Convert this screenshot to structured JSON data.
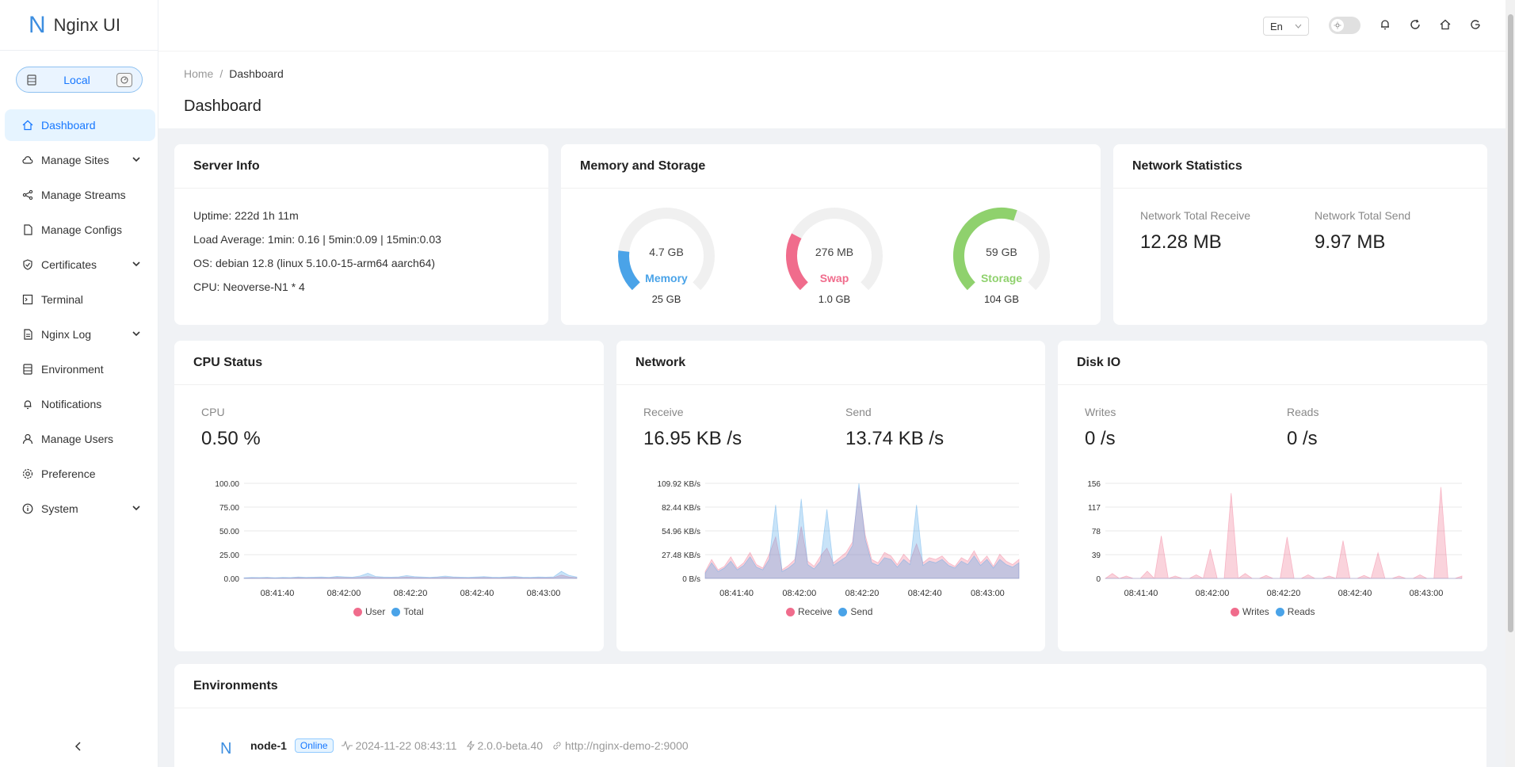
{
  "app": {
    "logo_letter": "N",
    "title": "Nginx UI"
  },
  "node_selector": {
    "label": "Local"
  },
  "sidebar": {
    "items": [
      {
        "label": "Dashboard",
        "icon": "home-icon",
        "active": true,
        "expandable": false
      },
      {
        "label": "Manage Sites",
        "icon": "cloud-icon",
        "expandable": true
      },
      {
        "label": "Manage Streams",
        "icon": "share-icon",
        "expandable": false
      },
      {
        "label": "Manage Configs",
        "icon": "file-icon",
        "expandable": false
      },
      {
        "label": "Certificates",
        "icon": "safety-certificate-icon",
        "expandable": true
      },
      {
        "label": "Terminal",
        "icon": "terminal-icon",
        "expandable": false
      },
      {
        "label": "Nginx Log",
        "icon": "file-text-icon",
        "expandable": true
      },
      {
        "label": "Environment",
        "icon": "database-icon",
        "expandable": false
      },
      {
        "label": "Notifications",
        "icon": "bell-icon",
        "expandable": false
      },
      {
        "label": "Manage Users",
        "icon": "user-icon",
        "expandable": false
      },
      {
        "label": "Preference",
        "icon": "setting-icon",
        "expandable": false
      },
      {
        "label": "System",
        "icon": "info-circle-icon",
        "expandable": true
      }
    ]
  },
  "header": {
    "language": "En"
  },
  "breadcrumb": {
    "home": "Home",
    "current": "Dashboard"
  },
  "page_title": "Dashboard",
  "server_info": {
    "title": "Server Info",
    "uptime": "Uptime: 222d 1h 11m",
    "load": "Load Average: 1min: 0.16 | 5min:0.09 | 15min:0.03",
    "os": "OS: debian 12.8 (linux 5.10.0-15-arm64 aarch64)",
    "cpu": "CPU: Neoverse-N1 * 4"
  },
  "memory_storage": {
    "title": "Memory and Storage",
    "gauges": [
      {
        "value": "4.7 GB",
        "name": "Memory",
        "total": "25 GB",
        "fraction": 0.19,
        "color": "#4aa3e8"
      },
      {
        "value": "276 MB",
        "name": "Swap",
        "total": "1.0 GB",
        "fraction": 0.27,
        "color": "#f06c8c"
      },
      {
        "value": "59 GB",
        "name": "Storage",
        "total": "104 GB",
        "fraction": 0.57,
        "color": "#8fd16d"
      }
    ]
  },
  "network_statistics": {
    "title": "Network Statistics",
    "receive_label": "Network Total Receive",
    "receive_value": "12.28 MB",
    "send_label": "Network Total Send",
    "send_value": "9.97 MB"
  },
  "cpu_status": {
    "title": "CPU Status",
    "label": "CPU",
    "value": "0.50 %",
    "legend": [
      "User",
      "Total"
    ]
  },
  "network": {
    "title": "Network",
    "receive_label": "Receive",
    "receive_value": "16.95 KB /s",
    "send_label": "Send",
    "send_value": "13.74 KB /s",
    "legend": [
      "Receive",
      "Send"
    ]
  },
  "disk_io": {
    "title": "Disk IO",
    "writes_label": "Writes",
    "writes_value": "0 /s",
    "reads_label": "Reads",
    "reads_value": "0 /s",
    "legend": [
      "Writes",
      "Reads"
    ]
  },
  "environments": {
    "title": "Environments",
    "nodes": [
      {
        "letter": "N",
        "name": "node-1",
        "status": "Online",
        "time": "2024-11-22 08:43:11",
        "version": "2.0.0-beta.40",
        "url": "http://nginx-demo-2:9000"
      }
    ]
  },
  "chart_data": [
    {
      "type": "area",
      "title": "CPU Status",
      "x_ticks": [
        "08:41:40",
        "08:42:00",
        "08:42:20",
        "08:42:40",
        "08:43:00"
      ],
      "y_ticks": [
        "100.00",
        "75.00",
        "50.00",
        "25.00",
        "0.00"
      ],
      "ylim": [
        0,
        100
      ],
      "series": [
        {
          "name": "User",
          "color": "#f06c8c",
          "values": [
            0.3,
            0.5,
            0.4,
            0.6,
            0.3,
            0.5,
            0.4,
            0.8,
            0.5,
            0.6,
            0.7,
            0.6,
            1.0,
            0.8,
            0.6,
            1.2,
            2.0,
            1.0,
            0.7,
            0.6,
            0.8,
            1.5,
            0.9,
            0.7,
            0.5,
            0.8,
            1.2,
            0.8,
            0.6,
            0.5,
            0.7,
            0.9,
            0.6,
            0.5,
            0.8,
            1.0,
            0.6,
            0.5,
            0.7,
            0.6,
            0.8,
            3.5,
            1.5,
            0.7
          ]
        },
        {
          "name": "Total",
          "color": "#4aa3e8",
          "values": [
            0.6,
            1.0,
            0.9,
            1.2,
            0.7,
            1.1,
            0.9,
            1.6,
            1.1,
            1.3,
            1.5,
            1.2,
            2.2,
            1.7,
            1.3,
            2.6,
            5.5,
            2.1,
            1.5,
            1.3,
            1.7,
            3.0,
            1.9,
            1.5,
            1.1,
            1.7,
            2.5,
            1.7,
            1.3,
            1.1,
            1.5,
            1.9,
            1.3,
            1.1,
            1.7,
            2.1,
            1.3,
            1.1,
            1.5,
            1.3,
            1.7,
            7.5,
            3.2,
            1.5
          ]
        }
      ]
    },
    {
      "type": "area",
      "title": "Network",
      "x_ticks": [
        "08:41:40",
        "08:42:00",
        "08:42:20",
        "08:42:40",
        "08:43:00"
      ],
      "y_ticks": [
        "109.92 KB/s",
        "82.44 KB/s",
        "54.96 KB/s",
        "27.48 KB/s",
        "0 B/s"
      ],
      "ylim": [
        0,
        109.92
      ],
      "series": [
        {
          "name": "Receive",
          "color": "#f06c8c",
          "values": [
            8,
            22,
            10,
            14,
            25,
            12,
            18,
            30,
            16,
            12,
            28,
            48,
            10,
            15,
            22,
            60,
            20,
            14,
            26,
            35,
            18,
            24,
            30,
            42,
            105,
            50,
            22,
            18,
            30,
            26,
            16,
            28,
            20,
            40,
            18,
            24,
            22,
            26,
            18,
            14,
            24,
            20,
            32,
            18,
            26,
            14,
            28,
            20,
            16,
            22
          ]
        },
        {
          "name": "Send",
          "color": "#4aa3e8",
          "values": [
            6,
            18,
            8,
            12,
            20,
            10,
            15,
            25,
            13,
            10,
            22,
            85,
            8,
            12,
            18,
            92,
            16,
            11,
            20,
            80,
            15,
            20,
            25,
            38,
            110,
            45,
            18,
            15,
            24,
            22,
            13,
            22,
            16,
            85,
            15,
            20,
            18,
            22,
            15,
            12,
            20,
            16,
            26,
            15,
            22,
            12,
            22,
            16,
            13,
            18
          ]
        }
      ]
    },
    {
      "type": "area",
      "title": "Disk IO",
      "x_ticks": [
        "08:41:40",
        "08:42:00",
        "08:42:20",
        "08:42:40",
        "08:43:00"
      ],
      "y_ticks": [
        "156",
        "117",
        "78",
        "39",
        "0"
      ],
      "ylim": [
        0,
        156
      ],
      "series": [
        {
          "name": "Writes",
          "color": "#f06c8c",
          "values": [
            0,
            8,
            0,
            4,
            0,
            0,
            12,
            0,
            70,
            0,
            4,
            0,
            0,
            6,
            0,
            48,
            0,
            0,
            140,
            0,
            8,
            0,
            0,
            5,
            0,
            0,
            68,
            0,
            0,
            6,
            0,
            0,
            4,
            0,
            62,
            0,
            0,
            5,
            0,
            42,
            0,
            0,
            4,
            0,
            0,
            6,
            0,
            0,
            150,
            0,
            0,
            4
          ]
        },
        {
          "name": "Reads",
          "color": "#4aa3e8",
          "values": [
            0,
            0,
            0,
            0,
            0,
            0,
            0,
            0,
            0,
            0,
            0,
            0,
            0,
            0,
            0,
            0,
            0,
            0,
            0,
            0,
            0,
            0,
            0,
            0,
            0,
            0,
            0,
            0,
            0,
            0,
            0,
            0,
            0,
            0,
            0,
            0,
            0,
            0,
            0,
            0,
            0,
            0,
            0,
            0,
            0,
            0,
            0,
            0,
            0,
            0,
            0,
            0
          ]
        }
      ]
    }
  ]
}
